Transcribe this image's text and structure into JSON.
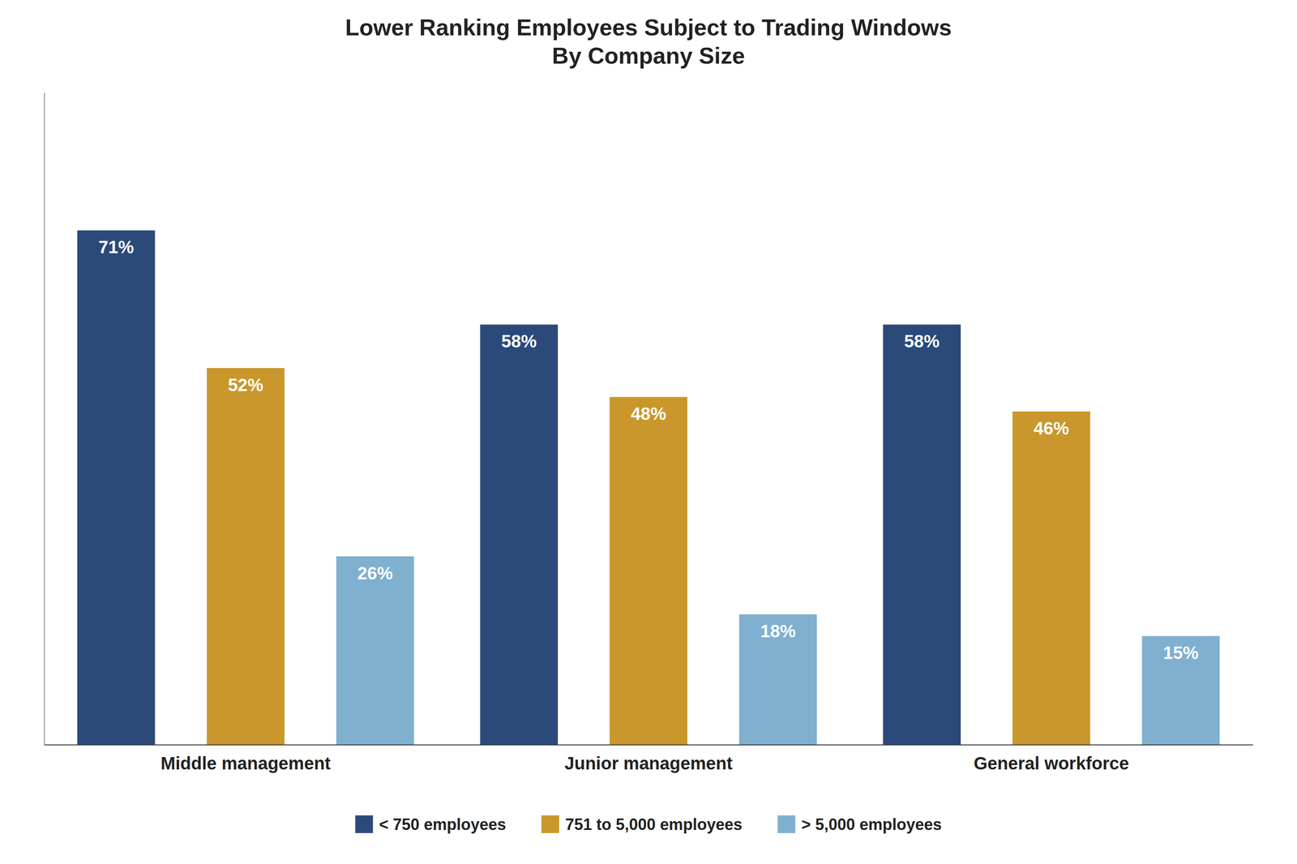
{
  "chart_data": {
    "type": "bar",
    "title": "Lower Ranking Employees Subject to Trading Windows\nBy Company Size",
    "categories": [
      "Middle management",
      "Junior management",
      "General workforce"
    ],
    "series": [
      {
        "name": "< 750 employees",
        "color": "#2B4A7A",
        "values": [
          71,
          58,
          58
        ],
        "value_labels": [
          "71%",
          "58%",
          "58%"
        ]
      },
      {
        "name": "751 to 5,000 employees",
        "color": "#C9972B",
        "values": [
          52,
          48,
          46
        ],
        "value_labels": [
          "52%",
          "48%",
          "46%"
        ]
      },
      {
        "name": "> 5,000 employees",
        "color": "#7FB0D0",
        "values": [
          26,
          18,
          15
        ],
        "value_labels": [
          "26%",
          "18%",
          "15%"
        ]
      }
    ],
    "ylim": [
      0,
      90
    ],
    "data_labels": true,
    "tick_labels": "x",
    "legend": "bottom",
    "grid": false
  }
}
